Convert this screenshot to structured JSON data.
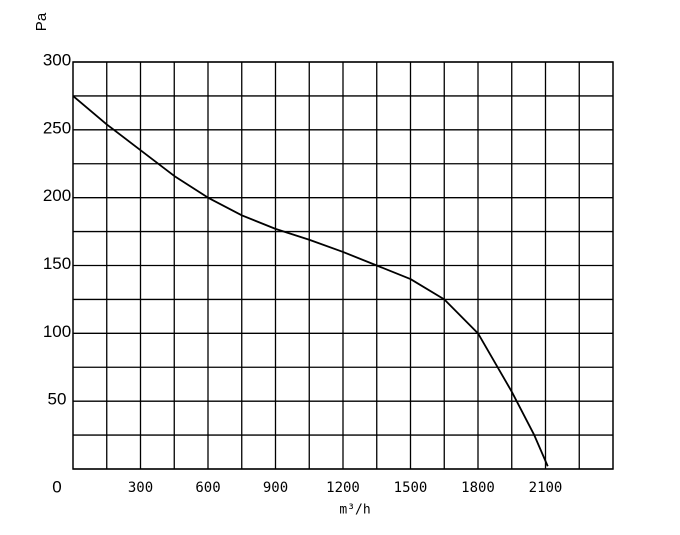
{
  "chart_data": {
    "type": "line",
    "y_label": "Pa",
    "x_label": "m³/h",
    "x": [
      0,
      150,
      300,
      450,
      600,
      750,
      900,
      1050,
      1200,
      1350,
      1500,
      1650,
      1800,
      1950,
      2050,
      2110
    ],
    "series": [
      {
        "color": "#000000",
        "values": [
          275,
          254,
          235,
          216,
          200,
          187,
          177,
          169,
          160,
          150,
          140,
          125,
          100,
          57,
          25,
          2
        ]
      }
    ],
    "xlim": [
      0,
      2400
    ],
    "ylim": [
      0,
      300
    ],
    "xticks": [
      300,
      600,
      900,
      1200,
      1500,
      1800,
      2100
    ],
    "yticks": [
      0,
      50,
      100,
      150,
      200,
      250,
      300
    ],
    "minor_xticks": [
      150,
      450,
      750,
      1050,
      1350,
      1650,
      1950,
      2250
    ],
    "minor_yticks": [
      25,
      75,
      125,
      175,
      225,
      275
    ],
    "grid": true
  }
}
